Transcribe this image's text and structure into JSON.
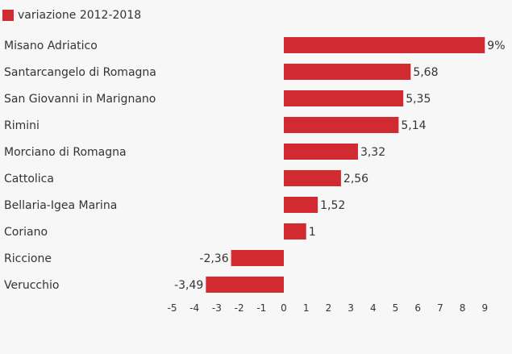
{
  "chart_data": {
    "type": "bar",
    "orientation": "horizontal",
    "legend_position": "top-left",
    "grid": false,
    "series": [
      {
        "name": "variazione 2012-2018",
        "color": "#d12a30",
        "values": [
          9,
          5.68,
          5.35,
          5.14,
          3.32,
          2.56,
          1.52,
          1,
          -2.36,
          -3.49
        ]
      }
    ],
    "categories": [
      "Misano Adriatico",
      "Santarcangelo di Romagna",
      "San Giovanni in Marignano",
      "Rimini",
      "Morciano di Romagna",
      "Cattolica",
      "Bellaria-Igea Marina",
      "Coriano",
      "Riccione",
      "Verucchio"
    ],
    "data_labels": [
      "9%",
      "5,68",
      "5,35",
      "5,14",
      "3,32",
      "2,56",
      "1,52",
      "1",
      "-2,36",
      "-3,49"
    ],
    "x_ticks": [
      "-5",
      "-4",
      "-3",
      "-2",
      "-1",
      "0",
      "1",
      "2",
      "3",
      "4",
      "5",
      "6",
      "7",
      "8",
      "9"
    ],
    "xlim": [
      -5,
      9
    ]
  }
}
